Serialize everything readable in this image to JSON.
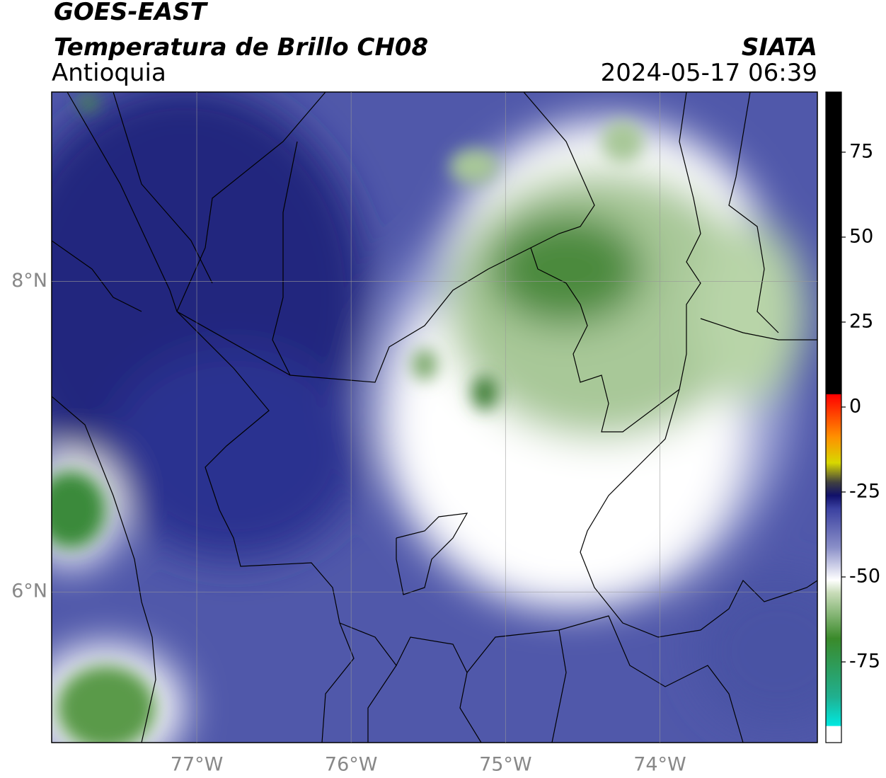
{
  "header": {
    "title": "GOES-EAST",
    "subtitle": "Temperatura de Brillo CH08",
    "region": "Antioquia",
    "source": "SIATA",
    "datetime": "2024-05-17 06:39"
  },
  "map": {
    "xlim": [
      -77.94,
      -72.98
    ],
    "ylim": [
      5.03,
      9.22
    ],
    "xticks": [
      {
        "value": -77,
        "label": "77°W"
      },
      {
        "value": -76,
        "label": "76°W"
      },
      {
        "value": -75,
        "label": "75°W"
      },
      {
        "value": -74,
        "label": "74°W"
      }
    ],
    "yticks": [
      {
        "value": 6,
        "label": "6°N"
      },
      {
        "value": 8,
        "label": "8°N"
      }
    ]
  },
  "colorbar": {
    "lim": [
      -98.75,
      92.7
    ],
    "ticks": [
      75,
      50,
      25,
      0,
      -25,
      -50,
      -75
    ]
  }
}
